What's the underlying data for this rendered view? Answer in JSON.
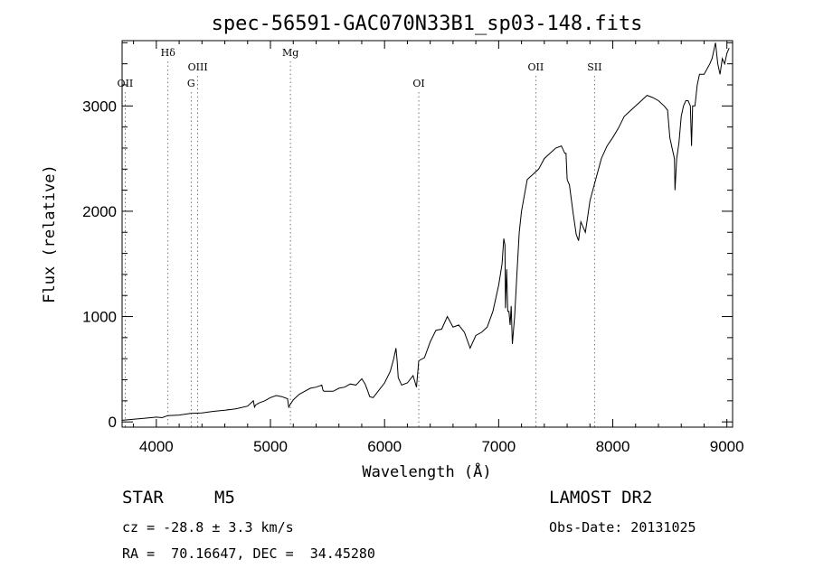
{
  "chart_data": {
    "type": "line",
    "title": "spec-56591-GAC070N33B1_sp03-148.fits",
    "xlabel": "Wavelength (Å)",
    "ylabel": "Flux (relative)",
    "xlim": [
      3700,
      9050
    ],
    "ylim": [
      -50,
      3620
    ],
    "x_ticks": [
      4000,
      5000,
      6000,
      7000,
      8000,
      9000
    ],
    "x_tick_labels": [
      "4000",
      "5000",
      "6000",
      "7000",
      "8000",
      "9000"
    ],
    "y_ticks": [
      0,
      1000,
      2000,
      3000
    ],
    "y_tick_labels": [
      "0",
      "1000",
      "2000",
      "3000"
    ],
    "grid": false,
    "lines": [
      {
        "label": "OII",
        "x": 3727,
        "row": 3
      },
      {
        "label": "Hδ",
        "x": 4102,
        "row": 1
      },
      {
        "label": "OIII",
        "x": 4363,
        "row": 2
      },
      {
        "label": "G",
        "x": 4305,
        "row": 3
      },
      {
        "label": "Mg",
        "x": 5175,
        "row": 1
      },
      {
        "label": "OI",
        "x": 6300,
        "row": 3
      },
      {
        "label": "OII",
        "x": 7325,
        "row": 2
      },
      {
        "label": "SII",
        "x": 7840,
        "row": 2
      }
    ],
    "series": [
      {
        "x": [
          3700,
          3800,
          3900,
          4000,
          4050,
          4100,
          4200,
          4300,
          4400,
          4500,
          4600,
          4700,
          4800,
          4850,
          4860,
          4870,
          4900,
          4950,
          5000,
          5050,
          5100,
          5150,
          5160,
          5170,
          5200,
          5250,
          5300,
          5350,
          5400,
          5450,
          5460,
          5470,
          5500,
          5550,
          5600,
          5650,
          5700,
          5750,
          5800,
          5830,
          5850,
          5870,
          5900,
          5950,
          6000,
          6050,
          6080,
          6100,
          6110,
          6120,
          6150,
          6200,
          6250,
          6280,
          6300,
          6350,
          6400,
          6450,
          6500,
          6550,
          6600,
          6650,
          6700,
          6750,
          6800,
          6850,
          6900,
          6950,
          7000,
          7030,
          7045,
          7055,
          7060,
          7070,
          7080,
          7090,
          7100,
          7110,
          7120,
          7140,
          7160,
          7180,
          7200,
          7250,
          7300,
          7350,
          7400,
          7450,
          7500,
          7550,
          7580,
          7590,
          7600,
          7620,
          7650,
          7680,
          7700,
          7720,
          7740,
          7760,
          7780,
          7800,
          7850,
          7900,
          7950,
          8000,
          8050,
          8100,
          8150,
          8200,
          8250,
          8300,
          8350,
          8400,
          8450,
          8480,
          8500,
          8520,
          8540,
          8545,
          8560,
          8580,
          8600,
          8620,
          8640,
          8660,
          8680,
          8690,
          8700,
          8720,
          8740,
          8760,
          8800,
          8850,
          8870,
          8880,
          8890,
          8900,
          8920,
          8940,
          8960,
          8980,
          9000,
          9020
        ],
        "y": [
          15,
          25,
          35,
          45,
          40,
          60,
          65,
          80,
          85,
          100,
          110,
          125,
          150,
          200,
          140,
          160,
          180,
          200,
          230,
          250,
          240,
          220,
          140,
          160,
          210,
          260,
          290,
          320,
          330,
          350,
          300,
          290,
          290,
          290,
          320,
          330,
          360,
          350,
          410,
          360,
          300,
          240,
          230,
          300,
          370,
          480,
          600,
          700,
          580,
          420,
          350,
          370,
          440,
          330,
          580,
          610,
          760,
          870,
          880,
          1000,
          900,
          920,
          850,
          700,
          820,
          850,
          900,
          1050,
          1300,
          1500,
          1740,
          1680,
          1080,
          1450,
          1050,
          1050,
          920,
          1100,
          740,
          1000,
          1400,
          1800,
          2000,
          2300,
          2350,
          2400,
          2500,
          2550,
          2600,
          2620,
          2550,
          2550,
          2300,
          2250,
          2000,
          1780,
          1720,
          1900,
          1850,
          1800,
          1950,
          2100,
          2300,
          2500,
          2620,
          2700,
          2790,
          2900,
          2950,
          3000,
          3050,
          3100,
          3080,
          3050,
          3000,
          2960,
          2700,
          2600,
          2500,
          2200,
          2500,
          2650,
          2900,
          3000,
          3050,
          3050,
          3000,
          2620,
          3000,
          3000,
          3200,
          3300,
          3300,
          3400,
          3450,
          3500,
          3550,
          3600,
          3400,
          3300,
          3450,
          3400,
          3500,
          3550
        ]
      }
    ]
  },
  "info": {
    "class_label": "STAR",
    "subclass_label": "M5",
    "survey_label": "LAMOST DR2",
    "cz_text": "cz = -28.8 ± 3.3 km/s",
    "obs_date_text": "Obs-Date: 20131025",
    "coords_text": "RA =  70.16647, DEC =  34.45280"
  }
}
